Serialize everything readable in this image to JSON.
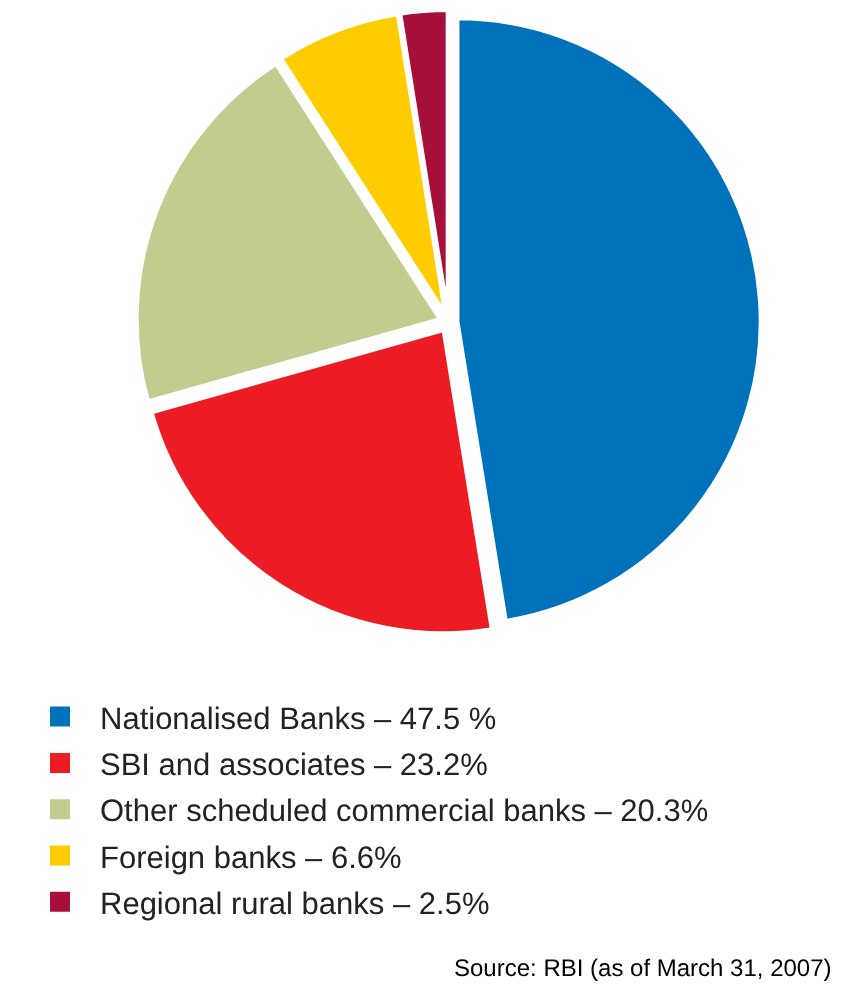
{
  "chart_data": {
    "type": "pie",
    "categories": [
      "Nationalised Banks – 47.5 %",
      "SBI and associates – 23.2%",
      "Other scheduled commercial banks – 20.3%",
      "Foreign banks – 6.6%",
      "Regional rural banks – 2.5%"
    ],
    "values": [
      47.5,
      23.2,
      20.3,
      6.6,
      2.5
    ],
    "colors": [
      "#0072bc",
      "#ed1c24",
      "#c2cc8f",
      "#ffcc00",
      "#a50f3a"
    ],
    "legend": "bottom",
    "annotations": [
      "Source: RBI (as of March 31, 2007)"
    ]
  }
}
